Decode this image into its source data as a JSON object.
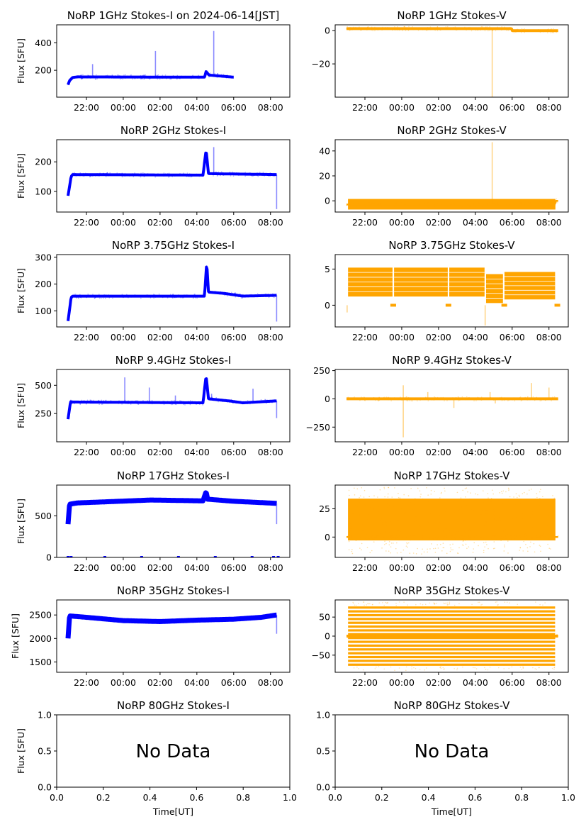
{
  "figure": {
    "x_label_bottom": "Time[UT]",
    "y_label": "Flux [SFU]",
    "no_data_text": "No Data",
    "colors": {
      "stokes_i": "#0000ff",
      "stokes_v": "#ffa500",
      "axes": "#000000"
    }
  },
  "chart_data": [
    {
      "id": "p1i",
      "type": "scatter",
      "row": 0,
      "col": 0,
      "title": "NoRP 1GHz Stokes-I on 2024-06-14[JST]",
      "ylabel": "Flux [SFU]",
      "xlabel": "",
      "series_color": "stokes_i",
      "xlim": [
        "20:23",
        "09:03"
      ],
      "ylim": [
        5,
        530
      ],
      "xticks": [
        "22:00",
        "00:00",
        "02:00",
        "04:00",
        "06:00",
        "08:00"
      ],
      "yticks": [
        200,
        400
      ],
      "data_span": [
        "21:00",
        "06:00"
      ],
      "baseline": [
        [
          "21:00",
          95
        ],
        [
          "21:05",
          125
        ],
        [
          "21:15",
          148
        ],
        [
          "21:30",
          152
        ],
        [
          "04:25",
          150
        ],
        [
          "04:30",
          190
        ],
        [
          "04:40",
          165
        ],
        [
          "06:00",
          150
        ]
      ],
      "spikes": [
        [
          "22:20",
          245
        ],
        [
          "01:45",
          340
        ],
        [
          "04:55",
          485
        ],
        [
          "05:08",
          180
        ]
      ]
    },
    {
      "id": "p1v",
      "type": "scatter",
      "row": 0,
      "col": 1,
      "title": "NoRP 1GHz Stokes-V",
      "ylabel": "",
      "xlabel": "",
      "series_color": "stokes_v",
      "xlim": [
        "20:23",
        "09:03"
      ],
      "ylim": [
        -40,
        3.5
      ],
      "xticks": [
        "22:00",
        "00:00",
        "02:00",
        "04:00",
        "06:00",
        "08:00"
      ],
      "yticks": [
        -20,
        0
      ],
      "data_span": [
        "21:00",
        "08:30"
      ],
      "baseline": [
        [
          "21:00",
          1.2
        ],
        [
          "05:58",
          1.2
        ],
        [
          "06:00",
          0
        ],
        [
          "08:30",
          0
        ]
      ],
      "spikes": [
        [
          "04:55",
          -40
        ]
      ]
    },
    {
      "id": "p2i",
      "type": "scatter",
      "row": 1,
      "col": 0,
      "title": "NoRP 2GHz Stokes-I",
      "ylabel": "Flux [SFU]",
      "xlabel": "",
      "series_color": "stokes_i",
      "xlim": [
        "20:23",
        "09:03"
      ],
      "ylim": [
        30,
        275
      ],
      "xticks": [
        "22:00",
        "00:00",
        "02:00",
        "04:00",
        "06:00",
        "08:00"
      ],
      "yticks": [
        100,
        200
      ],
      "data_span": [
        "21:00",
        "08:20"
      ],
      "baseline": [
        [
          "21:00",
          85
        ],
        [
          "21:10",
          150
        ],
        [
          "21:15",
          157
        ],
        [
          "04:20",
          155
        ],
        [
          "04:30",
          240
        ],
        [
          "04:38",
          160
        ],
        [
          "08:20",
          157
        ]
      ],
      "spikes": [
        [
          "04:55",
          250
        ],
        [
          "08:20",
          40
        ]
      ]
    },
    {
      "id": "p2v",
      "type": "scatter",
      "row": 1,
      "col": 1,
      "title": "NoRP 2GHz Stokes-V",
      "ylabel": "",
      "xlabel": "",
      "series_color": "stokes_v",
      "xlim": [
        "20:23",
        "09:03"
      ],
      "ylim": [
        -9,
        49
      ],
      "xticks": [
        "22:00",
        "00:00",
        "02:00",
        "04:00",
        "06:00",
        "08:00"
      ],
      "yticks": [
        0,
        20,
        40
      ],
      "data_span": [
        "21:00",
        "08:30"
      ],
      "band": [
        -7,
        1.5
      ],
      "baseline": [
        [
          "21:00",
          -3
        ],
        [
          "08:20",
          -3
        ],
        [
          "08:22",
          0
        ],
        [
          "08:30",
          0
        ]
      ],
      "spikes": [
        [
          "04:55",
          47
        ]
      ]
    },
    {
      "id": "p3i",
      "type": "scatter",
      "row": 2,
      "col": 0,
      "title": "NoRP 3.75GHz Stokes-I",
      "ylabel": "Flux [SFU]",
      "xlabel": "",
      "series_color": "stokes_i",
      "xlim": [
        "20:23",
        "09:03"
      ],
      "ylim": [
        40,
        310
      ],
      "xticks": [
        "22:00",
        "00:00",
        "02:00",
        "04:00",
        "06:00",
        "08:00"
      ],
      "yticks": [
        100,
        200,
        300
      ],
      "data_span": [
        "21:00",
        "08:20"
      ],
      "baseline": [
        [
          "21:00",
          62
        ],
        [
          "21:10",
          150
        ],
        [
          "21:15",
          155
        ],
        [
          "04:25",
          155
        ],
        [
          "04:32",
          280
        ],
        [
          "04:38",
          170
        ],
        [
          "05:30",
          165
        ],
        [
          "06:30",
          155
        ],
        [
          "08:20",
          158
        ]
      ],
      "spikes": [
        [
          "08:20",
          60
        ]
      ]
    },
    {
      "id": "p3v",
      "type": "scatter",
      "row": 2,
      "col": 1,
      "title": "NoRP 3.75GHz Stokes-V",
      "ylabel": "",
      "xlabel": "",
      "series_color": "stokes_v",
      "xlim": [
        "20:23",
        "09:03"
      ],
      "ylim": [
        -3,
        7
      ],
      "xticks": [
        "22:00",
        "00:00",
        "02:00",
        "04:00",
        "06:00",
        "08:00"
      ],
      "yticks": [
        0,
        5
      ],
      "data_span": [
        "21:00",
        "08:30"
      ],
      "segments": [
        [
          "21:05",
          "23:30",
          1.2,
          5.2
        ],
        [
          "23:35",
          "02:30",
          1.2,
          5.2
        ],
        [
          "02:35",
          "04:30",
          1.2,
          5.2
        ],
        [
          "04:35",
          "05:30",
          0.3,
          4.3
        ],
        [
          "05:35",
          "08:20",
          0.8,
          4.6
        ]
      ],
      "spikes": [
        [
          "04:32",
          -2.8
        ],
        [
          "21:02",
          -1
        ]
      ]
    },
    {
      "id": "p4i",
      "type": "scatter",
      "row": 3,
      "col": 0,
      "title": "NoRP 9.4GHz Stokes-I",
      "ylabel": "Flux [SFU]",
      "xlabel": "",
      "series_color": "stokes_i",
      "xlim": [
        "20:23",
        "09:03"
      ],
      "ylim": [
        0,
        640
      ],
      "xticks": [
        "22:00",
        "00:00",
        "02:00",
        "04:00",
        "06:00",
        "08:00"
      ],
      "yticks": [
        250,
        500
      ],
      "data_span": [
        "21:00",
        "08:20"
      ],
      "baseline": [
        [
          "21:00",
          200
        ],
        [
          "21:08",
          355
        ],
        [
          "21:15",
          352
        ],
        [
          "04:20",
          345
        ],
        [
          "04:30",
          585
        ],
        [
          "04:38",
          380
        ],
        [
          "05:50",
          360
        ],
        [
          "06:30",
          345
        ],
        [
          "08:20",
          362
        ]
      ],
      "spikes": [
        [
          "00:05",
          570
        ],
        [
          "01:25",
          480
        ],
        [
          "02:50",
          410
        ],
        [
          "04:48",
          425
        ],
        [
          "07:03",
          470
        ],
        [
          "08:20",
          210
        ]
      ]
    },
    {
      "id": "p4v",
      "type": "scatter",
      "row": 3,
      "col": 1,
      "title": "NoRP 9.4GHz Stokes-V",
      "ylabel": "",
      "xlabel": "",
      "series_color": "stokes_v",
      "xlim": [
        "20:23",
        "09:03"
      ],
      "ylim": [
        -380,
        260
      ],
      "xticks": [
        "22:00",
        "00:00",
        "02:00",
        "04:00",
        "06:00",
        "08:00"
      ],
      "yticks": [
        -250,
        0,
        250
      ],
      "data_span": [
        "21:00",
        "08:30"
      ],
      "baseline": [
        [
          "21:00",
          0
        ],
        [
          "08:30",
          0
        ]
      ],
      "spikes": [
        [
          "00:05",
          -340
        ],
        [
          "00:05",
          120
        ],
        [
          "01:25",
          60
        ],
        [
          "02:50",
          -80
        ],
        [
          "04:48",
          60
        ],
        [
          "05:05",
          -40
        ],
        [
          "07:03",
          140
        ],
        [
          "08:00",
          100
        ]
      ]
    },
    {
      "id": "p5i",
      "type": "scatter",
      "row": 4,
      "col": 0,
      "title": "NoRP 17GHz Stokes-I",
      "ylabel": "Flux [SFU]",
      "xlabel": "",
      "series_color": "stokes_i",
      "xlim": [
        "20:23",
        "09:03"
      ],
      "ylim": [
        0,
        870
      ],
      "xticks": [
        "22:00",
        "00:00",
        "02:00",
        "04:00",
        "06:00",
        "08:00"
      ],
      "yticks": [
        0,
        500
      ],
      "data_span": [
        "21:00",
        "08:20"
      ],
      "baseline": [
        [
          "21:00",
          400
        ],
        [
          "21:05",
          640
        ],
        [
          "21:30",
          655
        ],
        [
          "01:30",
          690
        ],
        [
          "04:20",
          680
        ],
        [
          "04:30",
          790
        ],
        [
          "04:35",
          700
        ],
        [
          "06:00",
          675
        ],
        [
          "08:20",
          650
        ]
      ],
      "spikes": [
        [
          "08:20",
          400
        ]
      ],
      "zero_marks": [
        "21:00",
        "21:10",
        "23:00",
        "01:00",
        "03:00",
        "05:00",
        "07:00",
        "08:10",
        "08:25"
      ]
    },
    {
      "id": "p5v",
      "type": "scatter",
      "row": 4,
      "col": 1,
      "title": "NoRP 17GHz Stokes-V",
      "ylabel": "",
      "xlabel": "",
      "series_color": "stokes_v",
      "xlim": [
        "20:23",
        "09:03"
      ],
      "ylim": [
        -18,
        46
      ],
      "xticks": [
        "22:00",
        "00:00",
        "02:00",
        "04:00",
        "06:00",
        "08:00"
      ],
      "yticks": [
        0,
        25
      ],
      "data_span": [
        "21:00",
        "08:30"
      ],
      "band": [
        -3,
        34
      ],
      "scatter_band": [
        -15,
        44
      ],
      "baseline": [
        [
          "21:00",
          0
        ],
        [
          "21:05",
          0
        ],
        [
          "08:20",
          0
        ],
        [
          "08:30",
          0
        ]
      ]
    },
    {
      "id": "p6i",
      "type": "scatter",
      "row": 5,
      "col": 0,
      "title": "NoRP 35GHz Stokes-I",
      "ylabel": "Flux [SFU]",
      "xlabel": "",
      "series_color": "stokes_i",
      "xlim": [
        "20:23",
        "09:03"
      ],
      "ylim": [
        1280,
        2820
      ],
      "xticks": [
        "22:00",
        "00:00",
        "02:00",
        "04:00",
        "06:00",
        "08:00"
      ],
      "yticks": [
        1500,
        2000,
        2500
      ],
      "data_span": [
        "21:00",
        "08:20"
      ],
      "baseline": [
        [
          "21:00",
          2000
        ],
        [
          "21:05",
          2480
        ],
        [
          "22:00",
          2450
        ],
        [
          "00:00",
          2380
        ],
        [
          "02:00",
          2360
        ],
        [
          "04:00",
          2390
        ],
        [
          "06:00",
          2410
        ],
        [
          "07:30",
          2450
        ],
        [
          "08:20",
          2500
        ]
      ],
      "spikes": [
        [
          "08:20",
          2100
        ]
      ]
    },
    {
      "id": "p6v",
      "type": "scatter",
      "row": 5,
      "col": 1,
      "title": "NoRP 35GHz Stokes-V",
      "ylabel": "",
      "xlabel": "",
      "series_color": "stokes_v",
      "xlim": [
        "20:23",
        "09:03"
      ],
      "ylim": [
        -95,
        95
      ],
      "xticks": [
        "22:00",
        "00:00",
        "02:00",
        "04:00",
        "06:00",
        "08:00"
      ],
      "yticks": [
        -50,
        0,
        50
      ],
      "data_span": [
        "21:05",
        "08:20"
      ],
      "levels": [
        -75,
        -65,
        -55,
        -45,
        -35,
        -25,
        -15,
        -5,
        5,
        15,
        25,
        35,
        45,
        55,
        65,
        75
      ],
      "baseline": [
        [
          "21:00",
          0
        ],
        [
          "08:30",
          0
        ]
      ]
    },
    {
      "id": "p7i",
      "type": "empty",
      "row": 6,
      "col": 0,
      "title": "NoRP 80GHz Stokes-I",
      "ylabel": "Flux [SFU]",
      "xlabel": "Time[UT]",
      "xlim": [
        0,
        1
      ],
      "ylim": [
        0,
        1
      ],
      "xticks": [
        "0.0",
        "0.2",
        "0.4",
        "0.6",
        "0.8",
        "1.0"
      ],
      "yticks": [
        "0.0",
        "0.5",
        "1.0"
      ],
      "annotation": "No Data"
    },
    {
      "id": "p7v",
      "type": "empty",
      "row": 6,
      "col": 1,
      "title": "NoRP 80GHz Stokes-V",
      "ylabel": "",
      "xlabel": "Time[UT]",
      "xlim": [
        0,
        1
      ],
      "ylim": [
        0,
        1
      ],
      "xticks": [
        "0.0",
        "0.2",
        "0.4",
        "0.6",
        "0.8",
        "1.0"
      ],
      "yticks": [
        "0.0",
        "0.5",
        "1.0"
      ],
      "annotation": "No Data"
    }
  ]
}
